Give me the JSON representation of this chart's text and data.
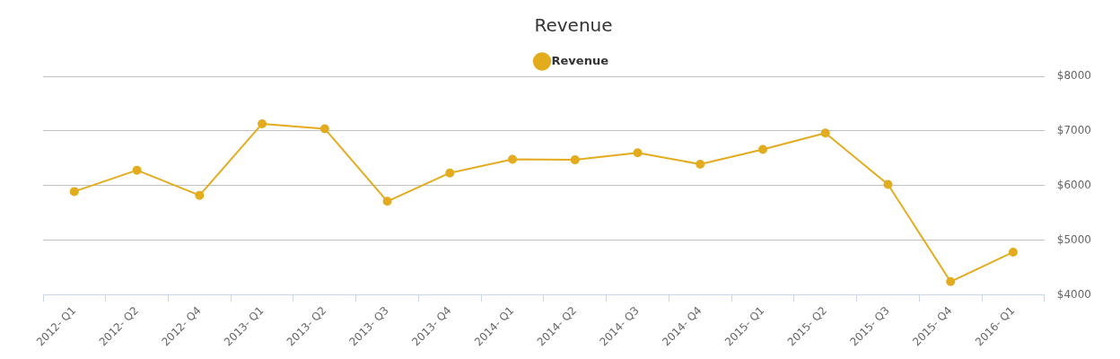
{
  "chart_data": {
    "type": "line",
    "title": "Revenue",
    "categories": [
      "2012- Q1",
      "2012- Q2",
      "2012- Q4",
      "2013- Q1",
      "2013- Q2",
      "2013- Q3",
      "2013- Q4",
      "2014- Q1",
      "2014- Q2",
      "2014- Q3",
      "2014- Q4",
      "2015- Q1",
      "2015- Q2",
      "2015- Q3",
      "2015- Q4",
      "2016- Q1"
    ],
    "series": [
      {
        "name": "Revenue",
        "color": "#e3ab1e",
        "values": [
          5890,
          6280,
          5820,
          7130,
          7040,
          5710,
          6230,
          6480,
          6470,
          6600,
          6390,
          6660,
          6960,
          6020,
          4240,
          4780
        ]
      }
    ],
    "ylim": [
      4000,
      8000
    ],
    "yticks": [
      {
        "value": 4000,
        "label": "$4000"
      },
      {
        "value": 5000,
        "label": "$5000"
      },
      {
        "value": 6000,
        "label": "$6000"
      },
      {
        "value": 7000,
        "label": "$7000"
      },
      {
        "value": 8000,
        "label": "$8000"
      }
    ],
    "grid": "y",
    "legend": "top",
    "marker": "circle",
    "line_style": "solid"
  }
}
